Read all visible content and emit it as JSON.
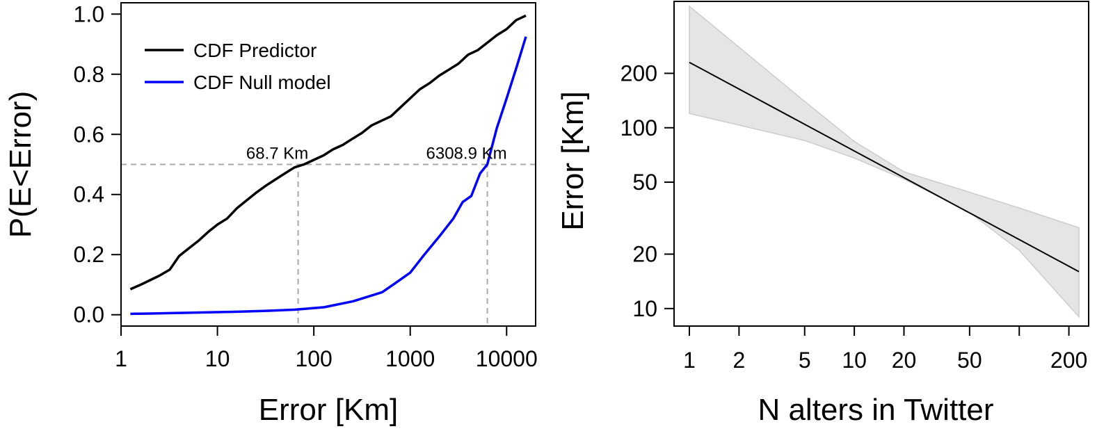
{
  "chart_data": [
    {
      "type": "line",
      "xlabel": "Error [Km]",
      "ylabel": "P(E<Error)",
      "x_scale": "log",
      "xlim": [
        1,
        20000
      ],
      "ylim": [
        0,
        1.0
      ],
      "x_ticks": [
        1,
        10,
        100,
        1000,
        10000
      ],
      "x_tick_labels": [
        "1",
        "10",
        "100",
        "1000",
        "10000"
      ],
      "y_ticks": [
        0,
        0.2,
        0.4,
        0.6,
        0.8,
        1.0
      ],
      "y_tick_labels": [
        "0.0",
        "0.2",
        "0.4",
        "0.6",
        "0.8",
        "1.0"
      ],
      "grid": false,
      "legend_position": "top-left",
      "colors": {
        "predictor": "#000000",
        "null_model": "#0000ff",
        "reference": "#aaaaaa"
      },
      "series": [
        {
          "name": "CDF Predictor",
          "color": "#000000",
          "x": [
            1.25,
            1.6,
            2,
            2.5,
            3.2,
            4,
            5,
            6.3,
            8,
            10,
            12.6,
            16,
            20,
            25,
            32,
            40,
            50,
            63,
            79,
            100,
            126,
            158,
            200,
            251,
            316,
            398,
            501,
            631,
            794,
            1000,
            1259,
            1585,
            1995,
            2512,
            3162,
            3981,
            5012,
            6310,
            7943,
            10000,
            12589,
            15849
          ],
          "values": [
            0.085,
            0.1,
            0.115,
            0.13,
            0.15,
            0.195,
            0.22,
            0.245,
            0.275,
            0.3,
            0.32,
            0.355,
            0.38,
            0.405,
            0.43,
            0.45,
            0.47,
            0.49,
            0.5,
            0.515,
            0.53,
            0.55,
            0.565,
            0.585,
            0.605,
            0.63,
            0.645,
            0.66,
            0.69,
            0.72,
            0.75,
            0.77,
            0.795,
            0.815,
            0.835,
            0.865,
            0.88,
            0.905,
            0.93,
            0.95,
            0.98,
            0.995
          ]
        },
        {
          "name": "CDF Null model",
          "color": "#0000ff",
          "x": [
            1.25,
            2,
            4,
            8,
            16,
            32,
            64,
            128,
            256,
            512,
            700,
            1000,
            1400,
            2000,
            2800,
            3500,
            4300,
            5300,
            6300,
            7900,
            10000,
            12589,
            15849
          ],
          "values": [
            0.003,
            0.004,
            0.006,
            0.008,
            0.01,
            0.013,
            0.017,
            0.025,
            0.045,
            0.075,
            0.105,
            0.14,
            0.2,
            0.26,
            0.32,
            0.375,
            0.395,
            0.47,
            0.5,
            0.62,
            0.72,
            0.82,
            0.925
          ]
        }
      ],
      "reference_lines": [
        {
          "type": "horizontal",
          "y": 0.5
        },
        {
          "type": "vertical",
          "x": 68.7
        },
        {
          "type": "vertical",
          "x": 6308.9
        }
      ],
      "annotations": [
        {
          "text": "68.7 Km",
          "x": 68.7,
          "y": 0.5
        },
        {
          "text": "6308.9 Km",
          "x": 6308.9,
          "y": 0.5
        }
      ]
    },
    {
      "type": "line",
      "xlabel": "N alters in Twitter",
      "ylabel": "Error [Km]",
      "x_scale": "log",
      "y_scale": "log",
      "xlim": [
        1,
        230
      ],
      "ylim": [
        8,
        500
      ],
      "x_ticks": [
        1,
        2,
        5,
        10,
        20,
        50,
        100,
        200
      ],
      "x_tick_labels": [
        "1",
        "2",
        "5",
        "10",
        "20",
        "50",
        "",
        "200"
      ],
      "y_ticks": [
        10,
        20,
        50,
        100,
        200
      ],
      "y_tick_labels": [
        "10",
        "20",
        "50",
        "100",
        "200"
      ],
      "grid": false,
      "colors": {
        "line": "#000000",
        "band_fill": "#e5e5e5",
        "band_edge": "#cccccc"
      },
      "series": [
        {
          "x": [
            1,
            230
          ],
          "values": [
            230,
            16
          ]
        }
      ],
      "confidence_band": {
        "x": [
          1,
          5,
          10,
          20,
          50,
          100,
          230
        ],
        "lower": [
          120,
          85,
          68,
          52,
          34,
          21,
          9
        ],
        "upper": [
          470,
          140,
          84,
          57,
          44,
          36,
          28
        ]
      }
    }
  ]
}
